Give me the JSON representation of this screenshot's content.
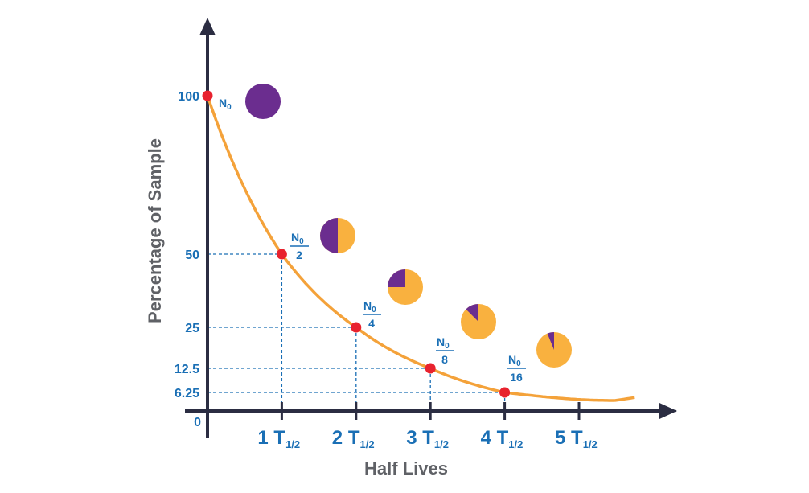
{
  "chart_data": {
    "type": "line",
    "title": "",
    "xlabel": "Half Lives",
    "ylabel": "Percentage of Sample",
    "x_tick_labels": [
      {
        "x": 1,
        "num": "1 T",
        "sub": "1/2"
      },
      {
        "x": 2,
        "num": "2 T",
        "sub": "1/2"
      },
      {
        "x": 3,
        "num": "3 T",
        "sub": "1/2"
      },
      {
        "x": 4,
        "num": "4 T",
        "sub": "1/2"
      },
      {
        "x": 5,
        "num": "5 T",
        "sub": "1/2"
      }
    ],
    "y_tick_labels": [
      {
        "y": 100,
        "label": "100"
      },
      {
        "y": 50,
        "label": "50"
      },
      {
        "y": 25,
        "label": "25"
      },
      {
        "y": 12.5,
        "label": "12.5"
      },
      {
        "y": 6.25,
        "label": "6.25"
      },
      {
        "y": 0,
        "label": "0"
      }
    ],
    "points": [
      {
        "x": 0,
        "y": 100,
        "annotation": {
          "main": "N",
          "sub": "0",
          "den": ""
        },
        "remaining_fraction": 1.0
      },
      {
        "x": 1,
        "y": 50,
        "annotation": {
          "main": "N",
          "sub": "0",
          "den": "2"
        },
        "remaining_fraction": 0.5
      },
      {
        "x": 2,
        "y": 25,
        "annotation": {
          "main": "N",
          "sub": "0",
          "den": "4"
        },
        "remaining_fraction": 0.25
      },
      {
        "x": 3,
        "y": 12.5,
        "annotation": {
          "main": "N",
          "sub": "0",
          "den": "8"
        },
        "remaining_fraction": 0.125
      },
      {
        "x": 4,
        "y": 6.25,
        "annotation": {
          "main": "N",
          "sub": "0",
          "den": "16"
        },
        "remaining_fraction": 0.0625
      }
    ],
    "colors": {
      "curve": "#f4a23a",
      "point": "#e8222e",
      "remaining": "#6b2d8f",
      "decayed": "#f9b13f",
      "guide": "#1a6fb5",
      "axis": "#2b2d42"
    },
    "grid": false,
    "legend": "none"
  }
}
